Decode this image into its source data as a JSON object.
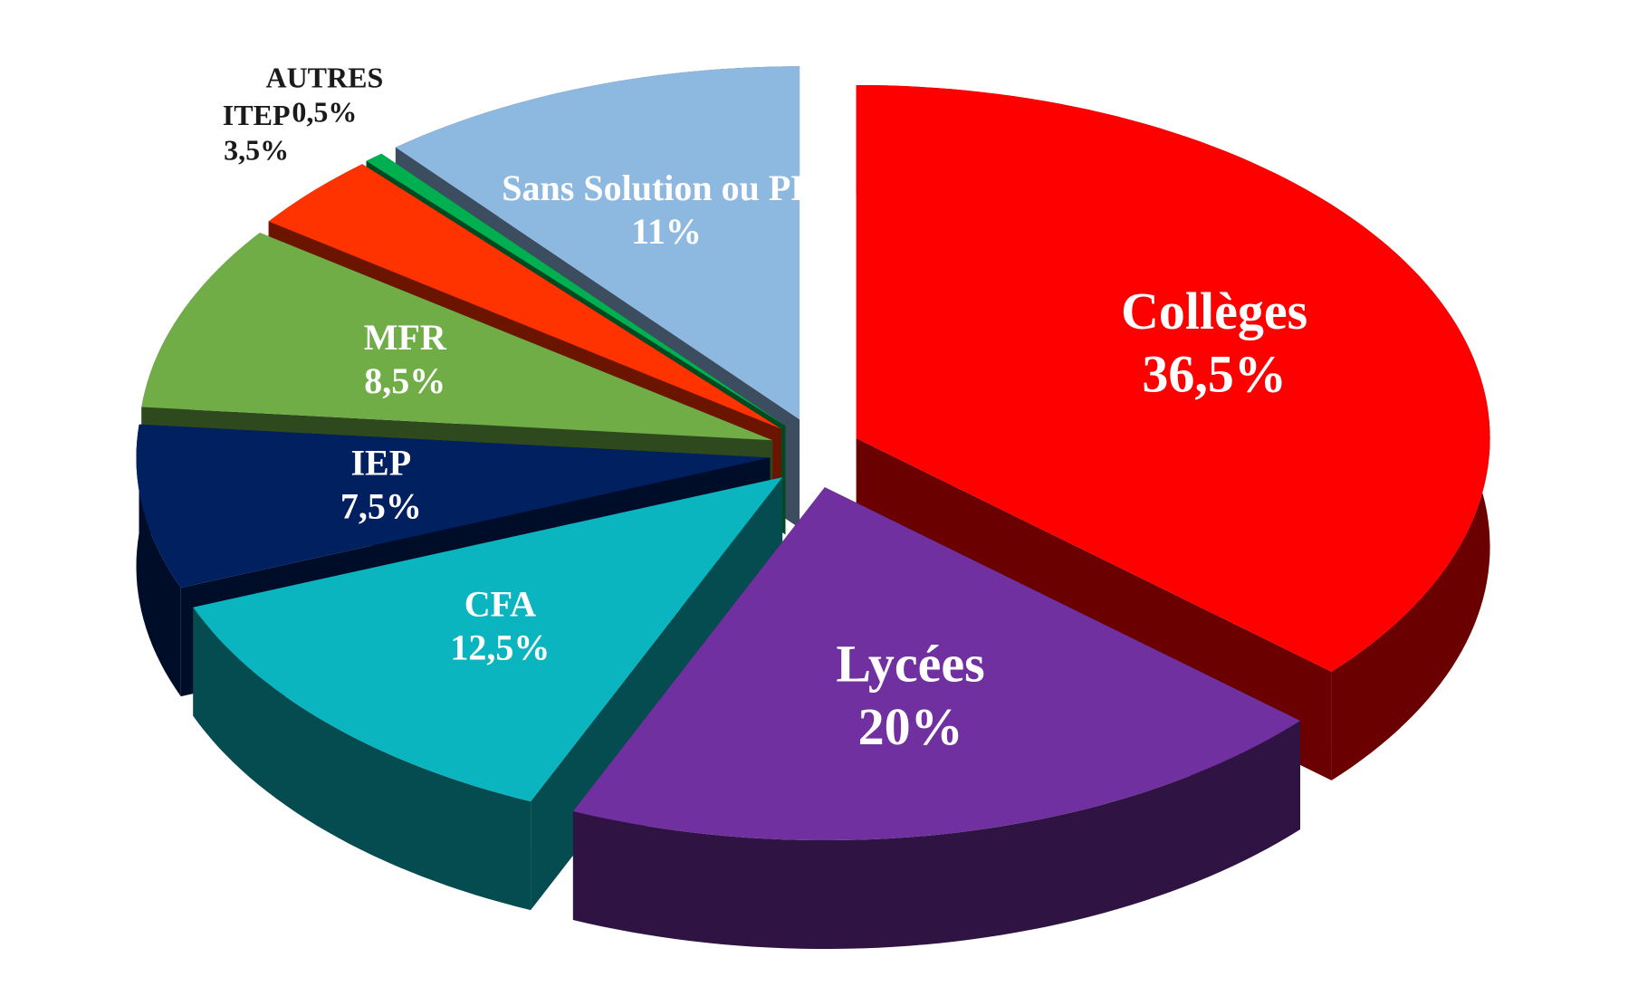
{
  "chart_data": {
    "type": "pie",
    "categories": [
      "Collèges",
      "Lycées",
      "CFA",
      "IEP",
      "MFR",
      "ITEP",
      "AUTRES",
      "Sans Solution ou PRI"
    ],
    "values": [
      36.5,
      20,
      12.5,
      7.5,
      8.5,
      3.5,
      0.5,
      11
    ],
    "value_labels": [
      "36,5%",
      "20%",
      "12,5%",
      "7,5%",
      "8,5%",
      "3,5%",
      "0,5%",
      "11%"
    ],
    "colors": [
      "#ff0000",
      "#7030a0",
      "#0bb5bf",
      "#002060",
      "#70ad47",
      "#ff3300",
      "#00b050",
      "#8db8e0"
    ]
  }
}
